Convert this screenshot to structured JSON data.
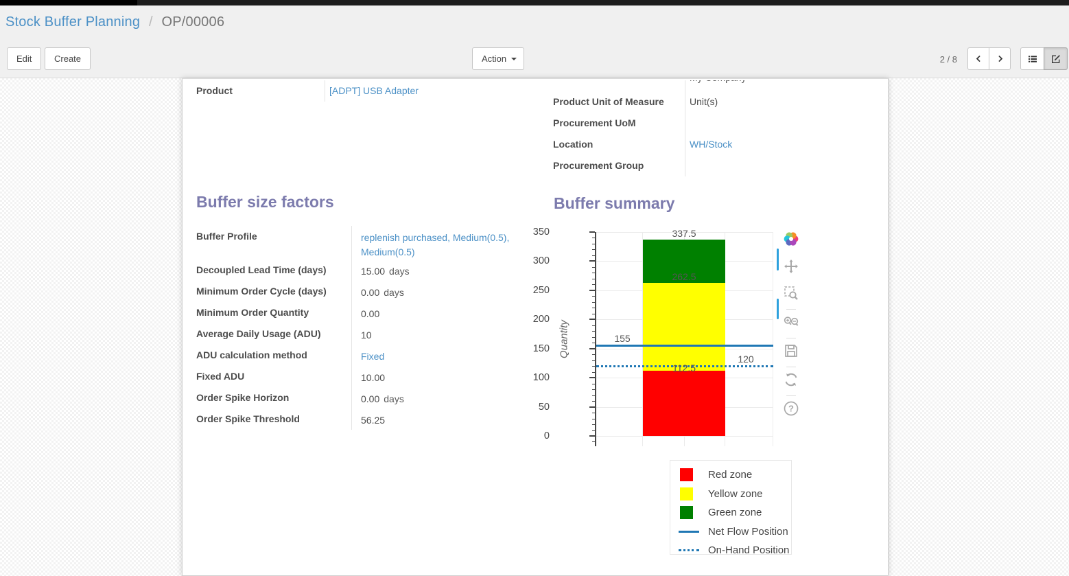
{
  "header": {
    "breadcrumb": {
      "parent": "Stock Buffer Planning",
      "separator": "/",
      "current": "OP/00006"
    },
    "edit_label": "Edit",
    "create_label": "Create",
    "action_label": "Action",
    "pager": "2 / 8"
  },
  "form": {
    "info_left": [
      {
        "label": "Product",
        "value": "[ADPT] USB Adapter",
        "type": "link"
      }
    ],
    "info_right": [
      {
        "label": "",
        "value": "My Company",
        "type": "text",
        "clipped": true
      },
      {
        "label": "Product Unit of Measure",
        "value": "Unit(s)",
        "type": "text"
      },
      {
        "label": "Procurement UoM",
        "value": "",
        "type": "text"
      },
      {
        "label": "Location",
        "value": "WH/Stock",
        "type": "link"
      },
      {
        "label": "Procurement Group",
        "value": "",
        "type": "text"
      }
    ],
    "sections": {
      "factors_title": "Buffer size factors",
      "summary_title": "Buffer summary"
    },
    "factors": [
      {
        "label": "Buffer Profile",
        "value": "replenish purchased, Medium(0.5), Medium(0.5)",
        "type": "link"
      },
      {
        "label": "Decoupled Lead Time (days)",
        "value": "15.00",
        "suffix": "days"
      },
      {
        "label": "Minimum Order Cycle (days)",
        "value": "0.00",
        "suffix": "days"
      },
      {
        "label": "Minimum Order Quantity",
        "value": "0.00"
      },
      {
        "label": "Average Daily Usage (ADU)",
        "value": "10"
      },
      {
        "label": "ADU calculation method",
        "value": "Fixed",
        "type": "link"
      },
      {
        "label": "Fixed ADU",
        "value": "10.00"
      },
      {
        "label": "Order Spike Horizon",
        "value": "0.00",
        "suffix": "days"
      },
      {
        "label": "Order Spike Threshold",
        "value": "56.25"
      }
    ]
  },
  "chart_data": {
    "type": "bar",
    "title": "Buffer summary",
    "ylabel": "Quantity",
    "ylim": [
      0,
      350
    ],
    "ytick_step": 50,
    "minor_tick_step": 10,
    "grid": true,
    "legend_position": "below-right",
    "zones": [
      {
        "name": "Red zone",
        "color": "#ff0000",
        "from": 0,
        "to": 112.5
      },
      {
        "name": "Yellow zone",
        "color": "#ffff00",
        "from": 112.5,
        "to": 262.5
      },
      {
        "name": "Green zone",
        "color": "#008000",
        "from": 262.5,
        "to": 337.5
      }
    ],
    "lines": [
      {
        "name": "Net Flow Position",
        "value": 155,
        "style": "solid",
        "color": "#1f77b4"
      },
      {
        "name": "On-Hand Position",
        "value": 120,
        "style": "dotted",
        "color": "#1f77b4"
      }
    ],
    "annotations": [
      {
        "text": "337.5",
        "value": 337.5,
        "x": "center",
        "dy": -17
      },
      {
        "text": "262.5",
        "value": 262.5,
        "x": "center",
        "dy": -17
      },
      {
        "text": "155",
        "value": 155,
        "x": "left",
        "dy": -18
      },
      {
        "text": "112.5",
        "value": 112.5,
        "x": "center",
        "dy": -12
      },
      {
        "text": "120",
        "value": 120,
        "x": "right",
        "dy": -18
      }
    ],
    "legend": [
      {
        "label": "Red zone",
        "swatch": "square",
        "color": "#ff0000"
      },
      {
        "label": "Yellow zone",
        "swatch": "square",
        "color": "#ffff00"
      },
      {
        "label": "Green zone",
        "swatch": "square",
        "color": "#008000"
      },
      {
        "label": "Net Flow Position",
        "swatch": "line",
        "color": "#1f77b4"
      },
      {
        "label": "On-Hand Position",
        "swatch": "dotted",
        "color": "#1f77b4"
      }
    ],
    "modebar_icons": [
      "plotly-logo",
      "pan",
      "box-zoom",
      "zoom-in-out",
      "save",
      "reset-axes",
      "help"
    ]
  },
  "colors": {
    "heading": "#7c7bad",
    "link": "#4b90c6",
    "net_flow_blue": "#1f77b4",
    "modebar_accent": "#2ea1dd"
  }
}
